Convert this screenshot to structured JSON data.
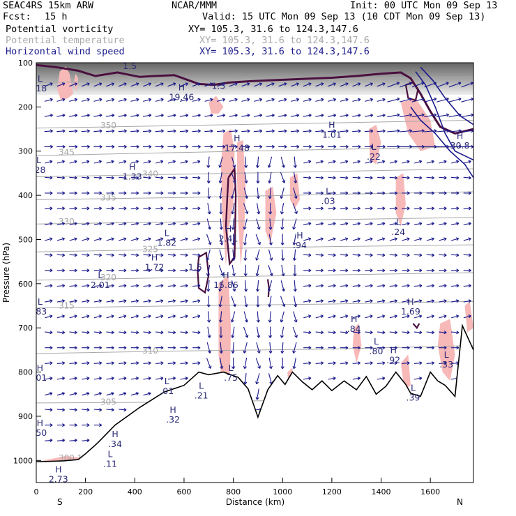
{
  "header": {
    "model": "SEAC4RS 15km ARW",
    "org": "NCAR/MMM",
    "init": "Init: 00 UTC Mon 09 Sep 13",
    "fcst_label": "Fcst:",
    "fcst_value": "15 h",
    "valid": "Valid: 15 UTC Mon 09 Sep 13 (10 CDT Mon 09 Sep 13)"
  },
  "fields": [
    {
      "name": "Potential vorticity",
      "xy": "XY= 105.3, 31.6 to 124.3,147.6",
      "color": "#000000"
    },
    {
      "name": "Potential temperature",
      "xy": "XY= 105.3, 31.6 to 124.3,147.6",
      "color": "#a8a8a8"
    },
    {
      "name": "Horizontal wind speed",
      "xy": "XY= 105.3, 31.6 to 124.3,147.6",
      "color": "#1a1a8c"
    }
  ],
  "colors": {
    "pv_fill": "#f7b8b8",
    "pv_contour": "#4a1040",
    "wind": "#1a1a8c",
    "theta": "#a8a8a8",
    "terrain": "#000000"
  },
  "chart_data": {
    "type": "cross-section",
    "xlabel": "Distance (km)",
    "ylabel": "Pressure (hPa)",
    "xlim": [
      0,
      1775
    ],
    "ylim": [
      1050,
      100
    ],
    "x_ticks": [
      0,
      200,
      400,
      600,
      800,
      1000,
      1200,
      1400,
      1600
    ],
    "y_ticks": [
      100,
      200,
      300,
      400,
      500,
      600,
      700,
      800,
      900,
      1000
    ],
    "endpoints": {
      "left": "S",
      "right": "N"
    },
    "terrain": {
      "x": [
        0,
        60,
        110,
        170,
        200,
        250,
        320,
        420,
        520,
        600,
        660,
        700,
        760,
        820,
        860,
        900,
        940,
        980,
        1010,
        1040,
        1080,
        1120,
        1160,
        1200,
        1250,
        1300,
        1340,
        1380,
        1420,
        1460,
        1500,
        1520,
        1560,
        1600,
        1630,
        1660,
        1700,
        1730,
        1775
      ],
      "p": [
        1003,
        1002,
        1001,
        998,
        985,
        960,
        920,
        880,
        845,
        830,
        800,
        806,
        800,
        812,
        838,
        902,
        840,
        808,
        828,
        800,
        822,
        840,
        820,
        842,
        820,
        840,
        810,
        850,
        832,
        800,
        828,
        848,
        855,
        800,
        820,
        830,
        855,
        695,
        750
      ]
    },
    "theta_contours": [
      {
        "value": "300.1",
        "p": [
          1005,
          995,
          985,
          960
        ]
      },
      {
        "value": "305",
        "p": [
          870,
          868,
          862,
          855
        ]
      },
      {
        "value": "310",
        "p": [
          758,
          752,
          748,
          740
        ]
      },
      {
        "value": "315",
        "p": [
          655,
          650,
          646,
          640
        ]
      },
      {
        "value": "320",
        "p": [
          592,
          586,
          580,
          575
        ]
      },
      {
        "value": "325",
        "p": [
          528,
          522,
          516,
          512
        ]
      },
      {
        "value": "330",
        "p": [
          465,
          460,
          455,
          450
        ]
      },
      {
        "value": "335",
        "p": [
          410,
          405,
          398,
          392
        ]
      },
      {
        "value": "340",
        "p": [
          358,
          352,
          346,
          340
        ]
      },
      {
        "value": "345",
        "p": [
          310,
          303,
          296,
          290
        ]
      },
      {
        "value": "350",
        "p": [
          248,
          242,
          236,
          230
        ]
      },
      {
        "value": "355",
        "p": [
          145,
          140,
          136,
          132
        ]
      }
    ],
    "theta_x": [
      0,
      600,
      1200,
      1775
    ],
    "pv_extrema": [
      {
        "type": "L",
        "value": ".18",
        "x": 15,
        "p": 155
      },
      {
        "type": "H",
        "value": "1.5",
        "x": 380,
        "p": 105
      },
      {
        "type": "H",
        "value": "19.46",
        "x": 590,
        "p": 175
      },
      {
        "type": "",
        "value": "1.5",
        "x": 740,
        "p": 150
      },
      {
        "type": "L",
        "value": ".28",
        "x": 10,
        "p": 340
      },
      {
        "type": "H",
        "value": "1.33",
        "x": 390,
        "p": 355
      },
      {
        "type": "H",
        "value": "17.48",
        "x": 815,
        "p": 290
      },
      {
        "type": "H",
        "value": "1.01",
        "x": 1200,
        "p": 260
      },
      {
        "type": "L",
        "value": ".22",
        "x": 1370,
        "p": 310
      },
      {
        "type": "H",
        "value": "30.8",
        "x": 1720,
        "p": 285
      },
      {
        "type": "L",
        "value": ".03",
        "x": 1185,
        "p": 410
      },
      {
        "type": "H",
        "value": "2.41",
        "x": 780,
        "p": 495
      },
      {
        "type": "L",
        "value": "1.82",
        "x": 530,
        "p": 505
      },
      {
        "type": "H",
        "value": ".94",
        "x": 1070,
        "p": 510
      },
      {
        "type": "L",
        "value": ".24",
        "x": 1470,
        "p": 480
      },
      {
        "type": "H",
        "value": "1.72",
        "x": 480,
        "p": 560
      },
      {
        "type": "",
        "value": "1.5",
        "x": 645,
        "p": 560
      },
      {
        "type": "H",
        "value": "15.86",
        "x": 770,
        "p": 600
      },
      {
        "type": "L",
        "value": "2.01",
        "x": 260,
        "p": 600
      },
      {
        "type": "L",
        "value": ".83",
        "x": 15,
        "p": 660
      },
      {
        "type": "H",
        "value": "1.69",
        "x": 1520,
        "p": 660
      },
      {
        "type": "H",
        "value": ".84",
        "x": 1290,
        "p": 700
      },
      {
        "type": "L",
        "value": ".80",
        "x": 1380,
        "p": 750
      },
      {
        "type": "H",
        "value": ".92",
        "x": 1450,
        "p": 770
      },
      {
        "type": "L",
        "value": ".33",
        "x": 1665,
        "p": 780
      },
      {
        "type": "H",
        "value": ".01",
        "x": 15,
        "p": 810
      },
      {
        "type": "L",
        "value": ".75",
        "x": 790,
        "p": 810
      },
      {
        "type": "L",
        "value": ".01",
        "x": 530,
        "p": 840
      },
      {
        "type": "L",
        "value": ".21",
        "x": 670,
        "p": 850
      },
      {
        "type": "L",
        "value": ".39",
        "x": 1530,
        "p": 855
      },
      {
        "type": "H",
        "value": ".32",
        "x": 555,
        "p": 905
      },
      {
        "type": "H",
        "value": ".50",
        "x": 15,
        "p": 935
      },
      {
        "type": "H",
        "value": ".34",
        "x": 320,
        "p": 960
      },
      {
        "type": "L",
        "value": ".11",
        "x": 300,
        "p": 1005
      },
      {
        "type": "H",
        "value": "2.73",
        "x": 90,
        "p": 1040
      }
    ]
  }
}
